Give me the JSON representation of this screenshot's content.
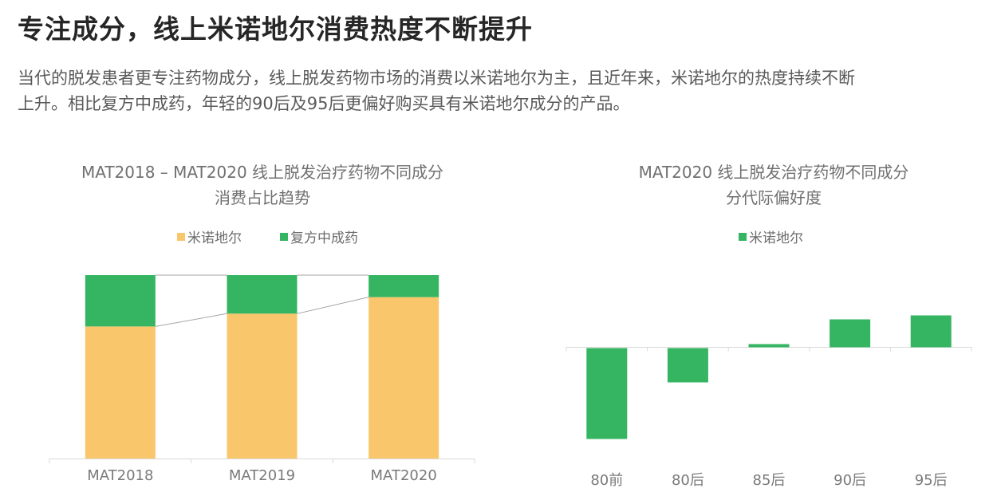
{
  "header": {
    "title": "专注成分，线上米诺地尔消费热度不断提升",
    "description_line1": "当代的脱发患者更专注药物成分，线上脱发药物市场的消费以米诺地尔为主，且近年来，米诺地尔的热度持续不断",
    "description_line2": "上升。相比复方中成药，年轻的90后及95后更偏好购买具有米诺地尔成分的产品。"
  },
  "colors": {
    "minoxidil": "#F9C66C",
    "compound_tcm": "#35B561",
    "axis": "#D9D9D9",
    "connector": "#A6A6A6"
  },
  "chart_data": [
    {
      "type": "bar",
      "stacked": true,
      "percent_stacked": true,
      "title_line1": "MAT2018 – MAT2020 线上脱发治疗药物不同成分",
      "title_line2": "消费占比趋势",
      "legend": [
        "米诺地尔",
        "复方中成药"
      ],
      "legend_position": "top",
      "categories": [
        "MAT2018",
        "MAT2019",
        "MAT2020"
      ],
      "series": [
        {
          "name": "米诺地尔",
          "color": "#F9C66C",
          "values": [
            72,
            79,
            88
          ]
        },
        {
          "name": "复方中成药",
          "color": "#35B561",
          "values": [
            28,
            21,
            12
          ]
        }
      ],
      "ylim": [
        0,
        100
      ],
      "grid": false,
      "xlabel": "",
      "ylabel": ""
    },
    {
      "type": "bar",
      "title_line1": "MAT2020 线上脱发治疗药物不同成分",
      "title_line2": "分代际偏好度",
      "legend": [
        "米诺地尔"
      ],
      "legend_position": "top",
      "categories": [
        "80前",
        "80后",
        "85后",
        "90后",
        "95后"
      ],
      "series": [
        {
          "name": "米诺地尔",
          "color": "#35B561",
          "values": [
            -114,
            -43,
            4,
            35,
            40
          ]
        }
      ],
      "ylim": [
        -120,
        50
      ],
      "grid": false,
      "xlabel": "",
      "ylabel": "",
      "note": "values in relative units (pixel-estimated preference index, no y-axis shown)"
    }
  ]
}
